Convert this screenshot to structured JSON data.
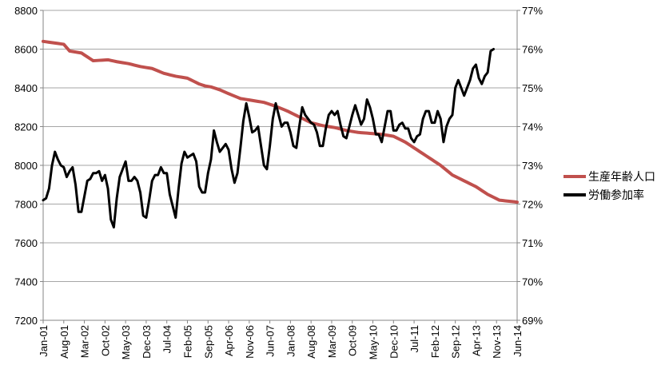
{
  "chart_data": {
    "type": "line",
    "title": "",
    "xlabel": "",
    "ylabel": "",
    "y2label": "",
    "grid": "horizontal",
    "legend_position": "right",
    "x_tick_labels": [
      "Jan-01",
      "Aug-01",
      "Mar-02",
      "Oct-02",
      "May-03",
      "Dec-03",
      "Jul-04",
      "Feb-05",
      "Sep-05",
      "Apr-06",
      "Nov-06",
      "Jun-07",
      "Jan-08",
      "Aug-08",
      "Mar-09",
      "Oct-09",
      "May-10",
      "Dec-10",
      "Jul-11",
      "Feb-12",
      "Sep-12",
      "Apr-13",
      "Nov-13",
      "Jun-14"
    ],
    "y_left": {
      "min": 7200,
      "max": 8800,
      "step": 200,
      "tick_labels": [
        "7200",
        "7400",
        "7600",
        "7800",
        "8000",
        "8200",
        "8400",
        "8600",
        "8800"
      ]
    },
    "y_right": {
      "min": 69,
      "max": 77,
      "step": 1,
      "tick_labels": [
        "69%",
        "70%",
        "71%",
        "72%",
        "73%",
        "74%",
        "75%",
        "76%",
        "77%"
      ]
    },
    "series": [
      {
        "name": "生産年齢人口",
        "axis": "left",
        "color": "#c0504d",
        "anchors": [
          [
            0,
            8640
          ],
          [
            7,
            8625
          ],
          [
            9,
            8590
          ],
          [
            13,
            8580
          ],
          [
            17,
            8540
          ],
          [
            22,
            8545
          ],
          [
            25,
            8535
          ],
          [
            29,
            8525
          ],
          [
            33,
            8510
          ],
          [
            37,
            8500
          ],
          [
            41,
            8475
          ],
          [
            45,
            8460
          ],
          [
            49,
            8450
          ],
          [
            53,
            8420
          ],
          [
            55,
            8410
          ],
          [
            57,
            8405
          ],
          [
            60,
            8390
          ],
          [
            63,
            8370
          ],
          [
            67,
            8345
          ],
          [
            71,
            8335
          ],
          [
            75,
            8325
          ],
          [
            79,
            8305
          ],
          [
            83,
            8280
          ],
          [
            87,
            8250
          ],
          [
            91,
            8220
          ],
          [
            95,
            8205
          ],
          [
            99,
            8195
          ],
          [
            103,
            8180
          ],
          [
            107,
            8170
          ],
          [
            111,
            8165
          ],
          [
            115,
            8160
          ],
          [
            119,
            8150
          ],
          [
            123,
            8120
          ],
          [
            127,
            8080
          ],
          [
            131,
            8040
          ],
          [
            135,
            8000
          ],
          [
            139,
            7950
          ],
          [
            143,
            7920
          ],
          [
            147,
            7890
          ],
          [
            151,
            7850
          ],
          [
            155,
            7820
          ],
          [
            161,
            7810
          ]
        ]
      },
      {
        "name": "労働参加率",
        "axis": "right",
        "color": "#000000",
        "values": [
          72.1,
          72.15,
          72.4,
          73,
          73.35,
          73.15,
          73.0,
          72.95,
          72.7,
          72.85,
          72.95,
          72.5,
          71.8,
          71.8,
          72.2,
          72.6,
          72.65,
          72.8,
          72.8,
          72.85,
          72.6,
          72.75,
          72.4,
          71.6,
          71.4,
          72.15,
          72.7,
          72.9,
          73.1,
          72.6,
          72.6,
          72.7,
          72.6,
          72.3,
          71.7,
          71.65,
          72.1,
          72.6,
          72.75,
          72.75,
          72.95,
          72.8,
          72.8,
          72.25,
          71.95,
          71.65,
          72.4,
          73.05,
          73.35,
          73.2,
          73.25,
          73.3,
          73.1,
          72.45,
          72.3,
          72.3,
          72.8,
          73.15,
          73.9,
          73.6,
          73.35,
          73.45,
          73.55,
          73.4,
          72.9,
          72.55,
          72.8,
          73.45,
          74.15,
          74.6,
          74.25,
          73.85,
          73.9,
          74.0,
          73.5,
          73.0,
          72.9,
          73.5,
          74.2,
          74.6,
          74.3,
          74.0,
          74.1,
          74.1,
          73.85,
          73.5,
          73.45,
          74.0,
          74.5,
          74.3,
          74.2,
          74.1,
          74.05,
          73.85,
          73.5,
          73.5,
          73.95,
          74.3,
          74.4,
          74.3,
          74.4,
          74.05,
          73.75,
          73.7,
          74.0,
          74.3,
          74.55,
          74.3,
          74.05,
          74.2,
          74.7,
          74.5,
          74.2,
          73.8,
          73.8,
          73.6,
          74.0,
          74.4,
          74.4,
          73.9,
          73.9,
          74.05,
          74.1,
          73.95,
          73.95,
          73.7,
          73.6,
          73.75,
          73.8,
          74.2,
          74.4,
          74.4,
          74.1,
          74.1,
          74.4,
          74.2,
          73.6,
          74.0,
          74.2,
          74.3,
          75.0,
          75.2,
          75.0,
          74.8,
          75.0,
          75.2,
          75.5,
          75.6,
          75.25,
          75.1,
          75.3,
          75.4,
          75.95,
          76.0
        ]
      }
    ]
  }
}
